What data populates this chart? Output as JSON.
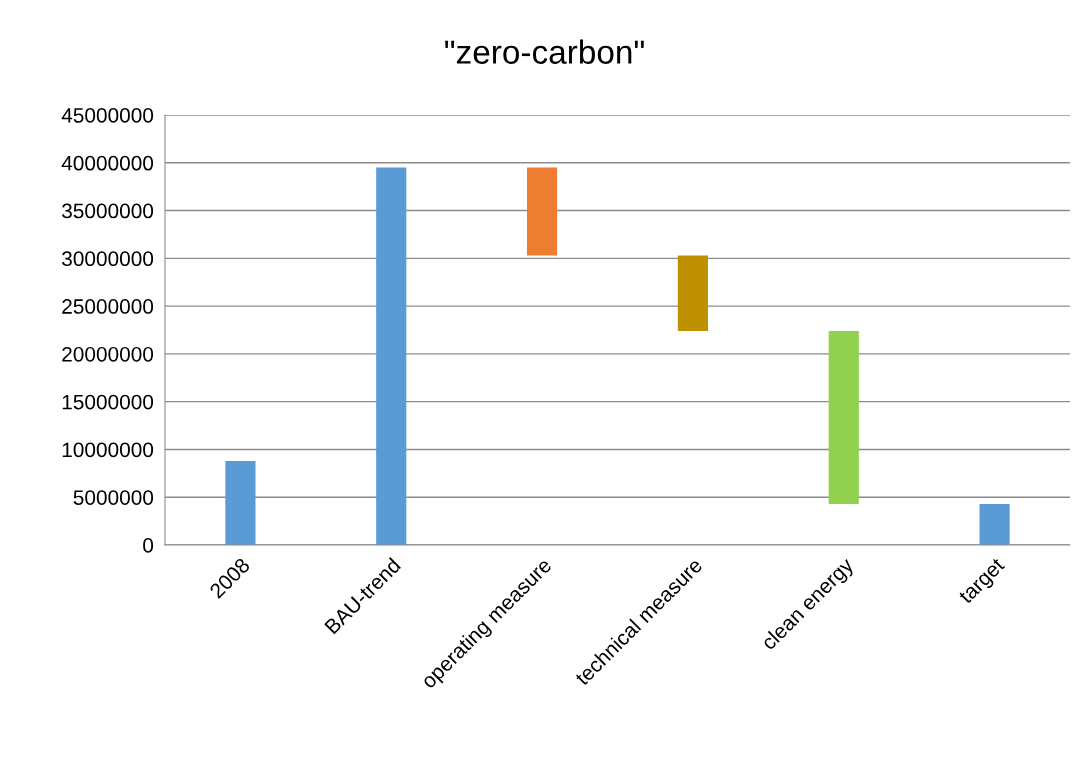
{
  "chart_data": {
    "type": "bar",
    "title": "\"zero-carbon\"",
    "categories": [
      "2008",
      "BAU-trend",
      "operating measure",
      "technical measure",
      "clean energy",
      "target"
    ],
    "values": [
      8800000,
      39500000,
      9200000,
      7900000,
      18100000,
      4300000
    ],
    "base": [
      0,
      0,
      30300000,
      22400000,
      4300000,
      0
    ],
    "colors": [
      "#5b9bd5",
      "#5b9bd5",
      "#ed7d31",
      "#bf9000",
      "#92d050",
      "#5b9bd5"
    ],
    "ylim": [
      0,
      45000000
    ],
    "yticks": [
      0,
      5000000,
      10000000,
      15000000,
      20000000,
      25000000,
      30000000,
      35000000,
      40000000,
      45000000
    ],
    "grid": "y",
    "legend": false
  }
}
